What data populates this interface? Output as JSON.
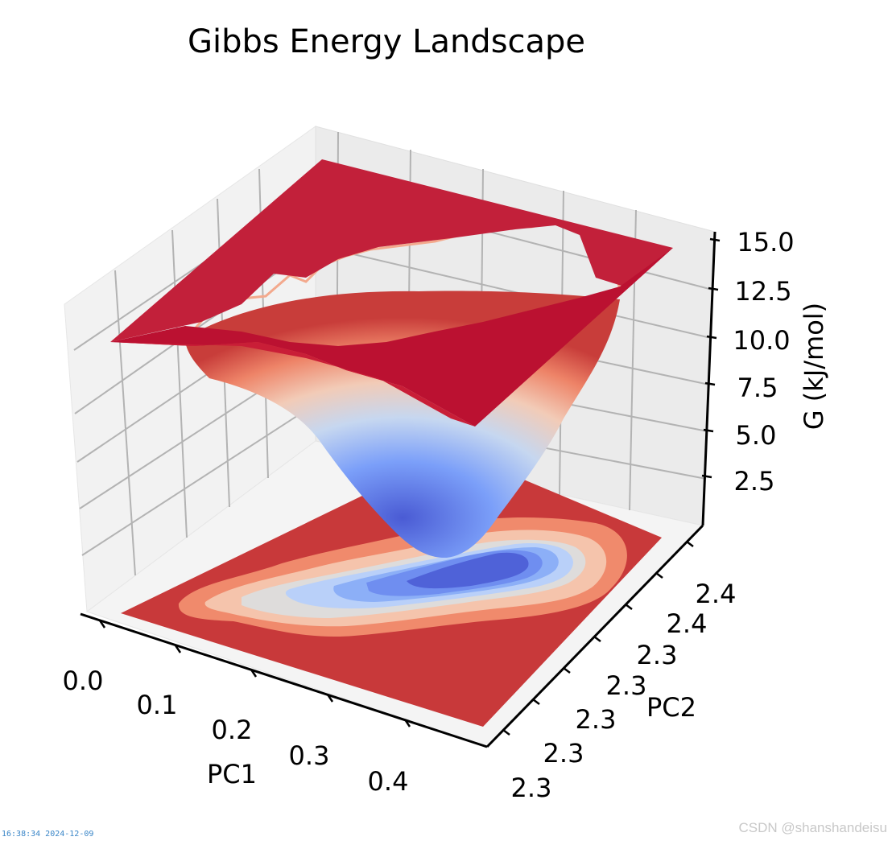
{
  "chart_data": {
    "type": "surface3d",
    "title": "Gibbs Energy Landscape",
    "xlabel": "PC1",
    "ylabel": "PC2",
    "zlabel": "G (kJ/mol)",
    "x_ticks": [
      "0.0",
      "0.1",
      "0.2",
      "0.3",
      "0.4"
    ],
    "y_ticks": [
      "2.3",
      "2.3",
      "2.3",
      "2.3",
      "2.3",
      "2.4",
      "2.4"
    ],
    "z_ticks": [
      "2.5",
      "5.0",
      "7.5",
      "10.0",
      "12.5",
      "15.0"
    ],
    "zlim": [
      0,
      15
    ],
    "colormap": "coolwarm",
    "colors": {
      "low": "#4a5bd4",
      "mid": "#dcdddd",
      "high": "#b40426",
      "floor": "#c8393a"
    },
    "features": {
      "surface_plateau": 15.0,
      "well_minimum": 0.5,
      "floor_contour": true,
      "grid": true
    }
  },
  "footer": {
    "timestamp": "16:38:34 2024-12-09",
    "watermark": "CSDN @shanshandeisu"
  }
}
